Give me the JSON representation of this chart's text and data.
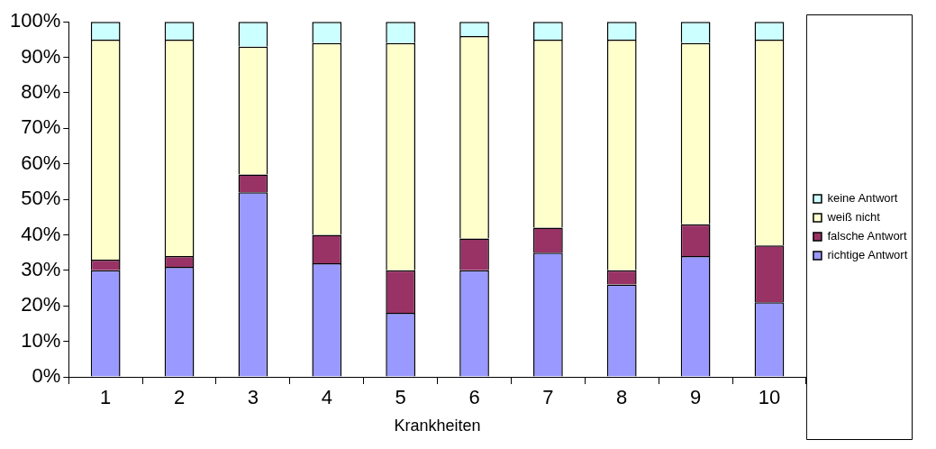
{
  "chart_data": {
    "type": "bar",
    "stacked": true,
    "xlabel": "Krankheiten",
    "categories": [
      "1",
      "2",
      "3",
      "4",
      "5",
      "6",
      "7",
      "8",
      "9",
      "10"
    ],
    "series": [
      {
        "name": "richtige Antwort",
        "color": "#9999ff",
        "values": [
          30,
          31,
          52,
          32,
          18,
          30,
          35,
          26,
          34,
          21
        ]
      },
      {
        "name": "falsche Antwort",
        "color": "#993366",
        "values": [
          3,
          3,
          5,
          8,
          12,
          9,
          7,
          4,
          9,
          16
        ]
      },
      {
        "name": "weiß nicht",
        "color": "#ffffcc",
        "values": [
          62,
          61,
          36,
          54,
          64,
          57,
          53,
          65,
          51,
          58
        ]
      },
      {
        "name": "keine Antwort",
        "color": "#ccffff",
        "values": [
          5,
          5,
          7,
          6,
          6,
          4,
          5,
          5,
          6,
          5
        ]
      }
    ],
    "ylim": [
      0,
      100
    ],
    "yticks": [
      {
        "value": 0,
        "label": "0%"
      },
      {
        "value": 10,
        "label": "10%"
      },
      {
        "value": 20,
        "label": "20%"
      },
      {
        "value": 30,
        "label": "30%"
      },
      {
        "value": 40,
        "label": "40%"
      },
      {
        "value": 50,
        "label": "50%"
      },
      {
        "value": 60,
        "label": "60%"
      },
      {
        "value": 70,
        "label": "70%"
      },
      {
        "value": 80,
        "label": "80%"
      },
      {
        "value": 90,
        "label": "90%"
      },
      {
        "value": 100,
        "label": "100%"
      }
    ],
    "grid": false,
    "legend": "right"
  }
}
